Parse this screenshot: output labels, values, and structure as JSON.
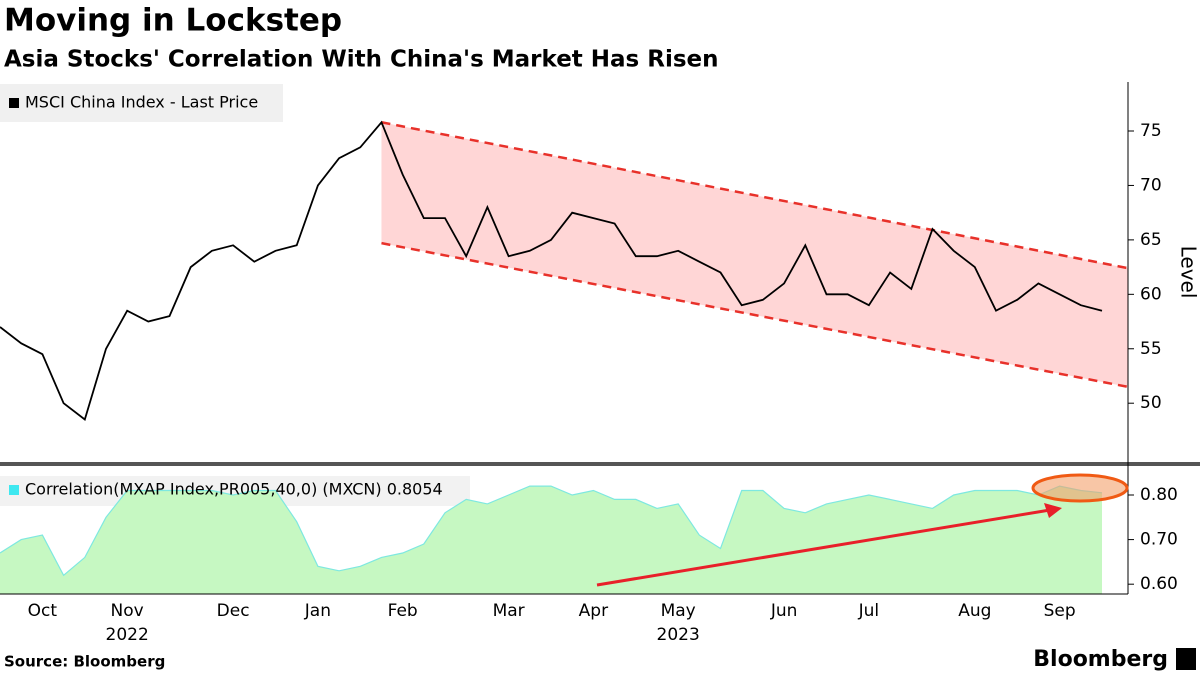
{
  "title": "Moving in Lockstep",
  "subtitle": "Asia Stocks' Correlation With China's Market Has Risen",
  "source": "Source: Bloomberg",
  "brand": "Bloomberg",
  "chart_data": [
    {
      "type": "line",
      "y_axis_label": "Level",
      "series": [
        {
          "name": "MSCI China Index - Last Price",
          "color": "#000000",
          "values": [
            57,
            55.5,
            54.5,
            50,
            48.5,
            55,
            58.5,
            57.5,
            58,
            62.5,
            64,
            64.5,
            63,
            64,
            64.5,
            70,
            72.5,
            73.5,
            75.8,
            71,
            67,
            67,
            63.5,
            68,
            63.5,
            64,
            65,
            67.5,
            67,
            66.5,
            63.5,
            63.5,
            64,
            63,
            62,
            59,
            59.5,
            61,
            64.5,
            60,
            60,
            59,
            62,
            60.5,
            66,
            64,
            62.5,
            58.5,
            59.5,
            61,
            60,
            59,
            58.5
          ]
        }
      ],
      "channel": {
        "color": "#e8312a",
        "fill": "#ffd6d6",
        "upper": [
          75.8,
          62.4
        ],
        "lower": [
          64.7,
          51.5
        ]
      },
      "ylim": [
        44.6,
        79.5
      ],
      "yticks": [
        50,
        55,
        60,
        65,
        70,
        75
      ]
    },
    {
      "type": "area",
      "series": [
        {
          "name": "Correlation(MXAP Index,PR005,40,0) (MXCN) 0.8054",
          "color": "#7ee8e0",
          "fill": "#c6f8c2",
          "values": [
            0.67,
            0.7,
            0.71,
            0.62,
            0.66,
            0.75,
            0.81,
            0.81,
            0.81,
            0.81,
            0.81,
            0.8,
            0.81,
            0.81,
            0.74,
            0.64,
            0.63,
            0.64,
            0.66,
            0.67,
            0.69,
            0.76,
            0.79,
            0.78,
            0.8,
            0.82,
            0.82,
            0.8,
            0.81,
            0.79,
            0.79,
            0.77,
            0.78,
            0.71,
            0.68,
            0.81,
            0.81,
            0.77,
            0.76,
            0.78,
            0.79,
            0.8,
            0.79,
            0.78,
            0.77,
            0.8,
            0.81,
            0.81,
            0.81,
            0.8,
            0.82,
            0.81,
            0.805
          ]
        }
      ],
      "ylim": [
        0.578,
        0.865
      ],
      "yticks": [
        {
          "value": 0.6,
          "label": "0.60"
        },
        {
          "value": 0.7,
          "label": "0.70"
        },
        {
          "value": 0.8,
          "label": "0.80"
        }
      ],
      "categories": [
        null,
        null,
        "Oct",
        null,
        null,
        null,
        "Nov",
        null,
        null,
        null,
        null,
        "Dec",
        null,
        null,
        null,
        "Jan",
        null,
        null,
        null,
        "Feb",
        null,
        null,
        null,
        null,
        "Mar",
        null,
        null,
        null,
        "Apr",
        null,
        null,
        null,
        "May",
        null,
        null,
        null,
        null,
        "Jun",
        null,
        null,
        null,
        "Jul",
        null,
        null,
        null,
        null,
        "Aug",
        null,
        null,
        null,
        "Sep",
        null,
        null
      ],
      "secondary_categories": [
        null,
        null,
        null,
        null,
        null,
        null,
        "2022",
        null,
        null,
        null,
        null,
        null,
        null,
        null,
        null,
        null,
        null,
        null,
        null,
        null,
        null,
        null,
        null,
        null,
        null,
        null,
        null,
        null,
        null,
        null,
        null,
        null,
        "2023",
        null,
        null,
        null,
        null,
        null,
        null,
        null,
        null,
        null,
        null,
        null,
        null,
        null,
        null,
        null,
        null,
        null,
        null,
        null,
        null
      ]
    }
  ]
}
